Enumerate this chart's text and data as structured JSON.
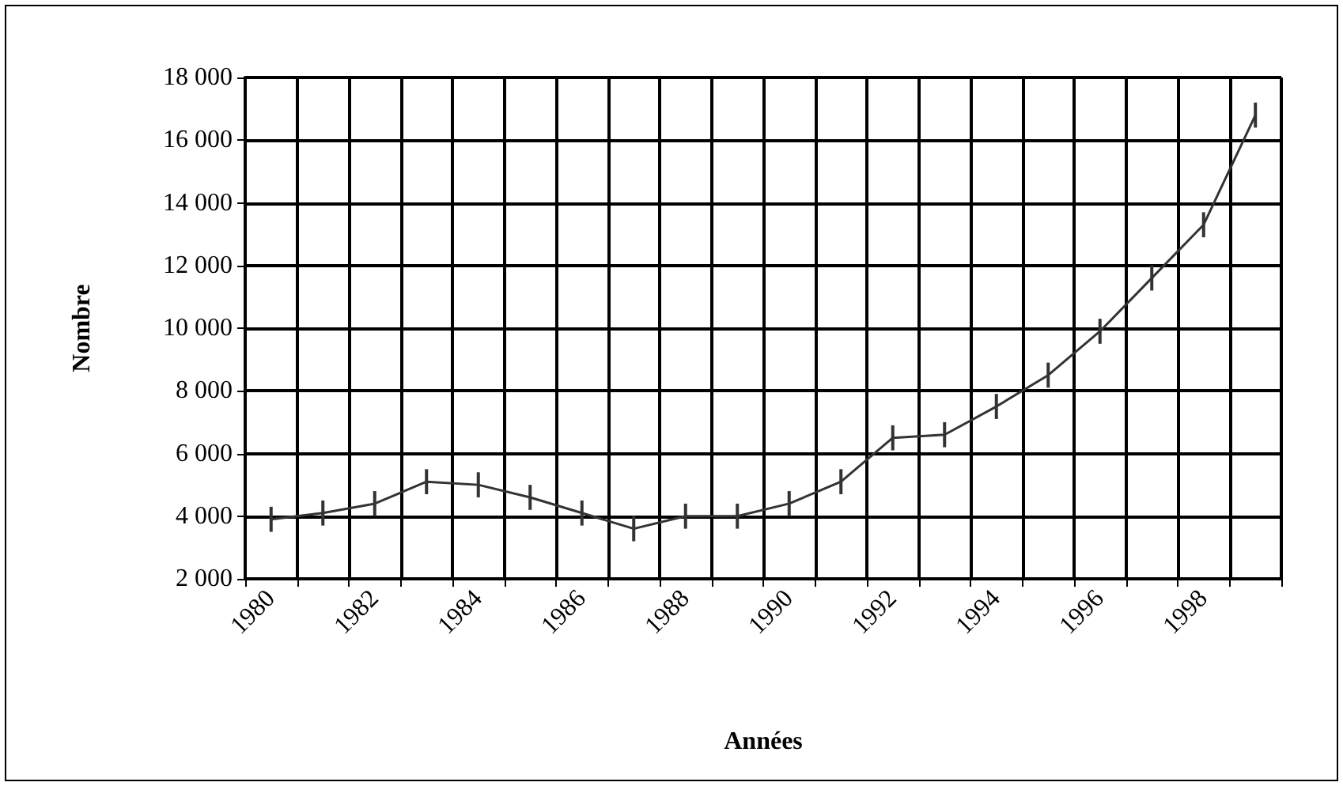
{
  "chart_data": {
    "type": "line",
    "xlabel": "Années",
    "ylabel": "Nombre",
    "categories": [
      "1980",
      null,
      "1982",
      null,
      "1984",
      null,
      "1986",
      null,
      "1988",
      null,
      "1990",
      null,
      "1992",
      null,
      "1994",
      null,
      "1996",
      null,
      "1998",
      null
    ],
    "series": [
      {
        "color": "#333333",
        "values": [
          3900,
          4100,
          4400,
          5100,
          5000,
          4600,
          4100,
          3600,
          4000,
          4000,
          4400,
          5100,
          6500,
          6600,
          7500,
          8500,
          9900,
          11600,
          13300,
          16800
        ],
        "errors": [
          400,
          400,
          400,
          400,
          400,
          400,
          400,
          400,
          400,
          400,
          400,
          400,
          400,
          400,
          400,
          400,
          400,
          400,
          400,
          400
        ]
      }
    ],
    "ylim": [
      2000,
      18000
    ],
    "yticks": [
      {
        "value": 2000,
        "label": "2 000"
      },
      {
        "value": 4000,
        "label": "4 000"
      },
      {
        "value": 6000,
        "label": "6 000"
      },
      {
        "value": 8000,
        "label": "8 000"
      },
      {
        "value": 10000,
        "label": "10 000"
      },
      {
        "value": 12000,
        "label": "12 000"
      },
      {
        "value": 14000,
        "label": "14 000"
      },
      {
        "value": 16000,
        "label": "16 000"
      },
      {
        "value": 18000,
        "label": "18 000"
      }
    ],
    "grid": true,
    "marker": "none",
    "line_style": "solid"
  }
}
